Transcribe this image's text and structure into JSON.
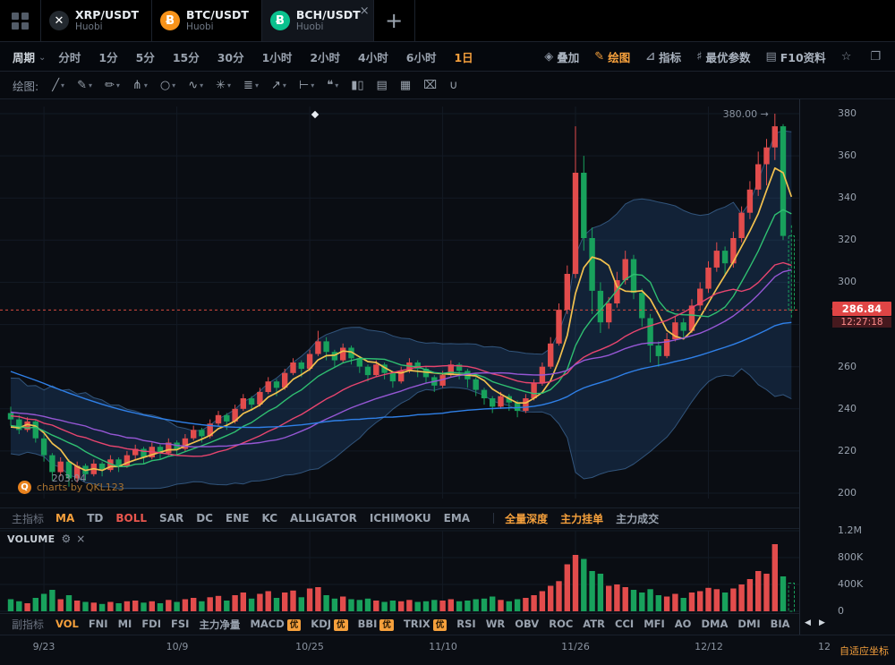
{
  "colors": {
    "up": "#e24c4c",
    "down": "#18a15c",
    "accent": "#f5a03c",
    "boll_fill": "rgba(42,96,160,0.26)",
    "boll_edge": "rgba(86,146,210,0.5)",
    "price_line": "#d84b40",
    "tag_bg": "#e04545",
    "grid": "#131a24",
    "ma5": "#f2c14e",
    "ma10": "#2fbf71",
    "ma20": "#e8456f",
    "ma30": "#9657d5",
    "ma60": "#2f80e8",
    "boll_label": "#e8564e"
  },
  "tabbar": {
    "add_label": "+",
    "tabs": [
      {
        "id": "xrp-usdt",
        "symbol": "XRP/USDT",
        "exchange": "Huobi",
        "icon": "xrp",
        "icon_glyph": "✕",
        "icon_bg": "#23292f",
        "active": false
      },
      {
        "id": "btc-usdt",
        "symbol": "BTC/USDT",
        "exchange": "Huobi",
        "icon": "btc",
        "icon_glyph": "Ƀ",
        "icon_bg": "#f7931a",
        "active": false
      },
      {
        "id": "bch-usdt",
        "symbol": "BCH/USDT",
        "exchange": "Huobi",
        "icon": "bch",
        "icon_glyph": "Ƀ",
        "icon_bg": "#0ac18e",
        "active": true,
        "close": "×"
      }
    ]
  },
  "period_bar": {
    "label": "周期",
    "caret": "⌄",
    "selected": "1d",
    "items": [
      {
        "id": "fenshi",
        "label": "分时"
      },
      {
        "id": "1m",
        "label": "1分"
      },
      {
        "id": "5m",
        "label": "5分"
      },
      {
        "id": "15m",
        "label": "15分"
      },
      {
        "id": "30m",
        "label": "30分"
      },
      {
        "id": "1h",
        "label": "1小时"
      },
      {
        "id": "2h",
        "label": "2小时"
      },
      {
        "id": "4h",
        "label": "4小时"
      },
      {
        "id": "6h",
        "label": "6小时"
      },
      {
        "id": "1d",
        "label": "1日"
      }
    ],
    "right_tools": [
      {
        "name": "overlay",
        "glyph": "◈",
        "label": "叠加",
        "active": false
      },
      {
        "name": "draw",
        "glyph": "✎",
        "label": "绘图",
        "active": true
      },
      {
        "name": "indicator",
        "glyph": "⊿",
        "label": "指标",
        "active": false
      },
      {
        "name": "best-params",
        "glyph": "♯",
        "label": "最优参数",
        "active": false
      },
      {
        "name": "f10-info",
        "glyph": "▤",
        "label": "F10资料",
        "active": false
      },
      {
        "name": "favorite",
        "glyph": "☆",
        "label": "",
        "active": false
      },
      {
        "name": "fullscreen",
        "glyph": "❐",
        "label": "",
        "active": false
      }
    ]
  },
  "draw_bar": {
    "label": "绘图:",
    "tools": [
      {
        "name": "trend-line",
        "glyph": "╱",
        "caret": true
      },
      {
        "name": "brush",
        "glyph": "✎",
        "caret": true
      },
      {
        "name": "pen",
        "glyph": "✏",
        "caret": true
      },
      {
        "name": "pitchfork",
        "glyph": "⋔",
        "caret": true
      },
      {
        "name": "ellipse",
        "glyph": "○",
        "caret": true
      },
      {
        "name": "wave",
        "glyph": "∿",
        "caret": true
      },
      {
        "name": "fibonacci",
        "glyph": "✳",
        "caret": true
      },
      {
        "name": "pattern",
        "glyph": "≣",
        "caret": true
      },
      {
        "name": "arrow",
        "glyph": "↗",
        "caret": true
      },
      {
        "name": "horizontal-line",
        "glyph": "⊢",
        "caret": true
      },
      {
        "name": "callout",
        "glyph": "❝",
        "caret": true
      },
      {
        "name": "volume-profile",
        "glyph": "▮▯",
        "caret": false
      },
      {
        "name": "export",
        "glyph": "▤",
        "caret": false
      },
      {
        "name": "histogram",
        "glyph": "▦",
        "caret": false
      },
      {
        "name": "trash",
        "glyph": "⌧",
        "caret": false
      },
      {
        "name": "magnet",
        "glyph": "∪",
        "caret": false
      }
    ]
  },
  "main_indicator_bar": {
    "label": "主指标",
    "items": [
      {
        "id": "ma",
        "label": "MA",
        "active": true
      },
      {
        "id": "td",
        "label": "TD"
      },
      {
        "id": "boll",
        "label": "BOLL",
        "active": true,
        "color": "#e8564e"
      },
      {
        "id": "sar",
        "label": "SAR"
      },
      {
        "id": "dc",
        "label": "DC"
      },
      {
        "id": "ene",
        "label": "ENE"
      },
      {
        "id": "kc",
        "label": "KC"
      },
      {
        "id": "alligator",
        "label": "ALLIGATOR"
      },
      {
        "id": "ichimoku",
        "label": "ICHIMOKU"
      },
      {
        "id": "ema",
        "label": "EMA"
      }
    ],
    "right_items": [
      {
        "id": "full-depth",
        "label": "全量深度",
        "active": true
      },
      {
        "id": "main-orders",
        "label": "主力挂单",
        "active": true
      },
      {
        "id": "main-trades",
        "label": "主力成交"
      }
    ]
  },
  "sub_indicator_bar": {
    "label": "副指标",
    "nav_left": "◀",
    "nav_right": "▶",
    "items": [
      {
        "id": "vol",
        "label": "VOL",
        "active": true
      },
      {
        "id": "fni",
        "label": "FNI"
      },
      {
        "id": "mi",
        "label": "MI"
      },
      {
        "id": "fdi",
        "label": "FDI"
      },
      {
        "id": "fsi",
        "label": "FSI"
      },
      {
        "id": "main-net-volume",
        "label": "主力净量"
      },
      {
        "id": "macd",
        "label": "MACD",
        "badge": "优"
      },
      {
        "id": "kdj",
        "label": "KDJ",
        "badge": "优"
      },
      {
        "id": "bbi",
        "label": "BBI",
        "badge": "优"
      },
      {
        "id": "trix",
        "label": "TRIX",
        "badge": "优"
      },
      {
        "id": "rsi",
        "label": "RSI"
      },
      {
        "id": "wr",
        "label": "WR"
      },
      {
        "id": "obv",
        "label": "OBV"
      },
      {
        "id": "roc",
        "label": "ROC"
      },
      {
        "id": "atr",
        "label": "ATR"
      },
      {
        "id": "cci",
        "label": "CCI"
      },
      {
        "id": "mfi",
        "label": "MFI"
      },
      {
        "id": "ao",
        "label": "AO"
      },
      {
        "id": "dma",
        "label": "DMA"
      },
      {
        "id": "dmi",
        "label": "DMI"
      },
      {
        "id": "bia",
        "label": "BIA"
      }
    ]
  },
  "volume_pane": {
    "title": "VOLUME",
    "gear": "⚙",
    "close": "×"
  },
  "bottom": {
    "adaptive_label": "自适应坐标"
  },
  "chart_data": {
    "type": "candlestick",
    "symbol": "BCH/USDT",
    "exchange": "Huobi",
    "interval": "1日",
    "title": "BCH/USDT Huobi 1日 K线",
    "y_ticks": [
      380,
      360,
      340,
      320,
      300,
      280,
      260,
      240,
      220,
      200
    ],
    "x_tick_labels": [
      "9/23",
      "10/9",
      "10/25",
      "11/10",
      "11/26",
      "12/12",
      "12"
    ],
    "x_tick_indices": [
      4,
      20,
      36,
      52,
      68,
      84,
      98
    ],
    "last_price": "286.84",
    "last_price_value": 286.84,
    "countdown": "12:27:18",
    "high_marker": "380.00",
    "high_marker_index": 92,
    "low_marker": "203.04",
    "low_marker_index": 7,
    "watermark": "charts by QKL123",
    "draw_marker": {
      "x": 352,
      "y": 17
    },
    "volume_ticks": [
      {
        "label": "1.2M",
        "value": 1200000
      },
      {
        "label": "800K",
        "value": 800000
      },
      {
        "label": "400K",
        "value": 400000
      },
      {
        "label": "0",
        "value": 0
      }
    ],
    "volume_max": 1200000,
    "ma_periods": [
      5,
      10,
      20,
      30,
      60
    ],
    "boll_period": 20,
    "boll_mult": 2,
    "pre_closes": [
      320,
      317,
      314,
      311,
      308,
      305,
      302,
      299,
      296,
      293,
      290,
      287,
      284,
      281,
      278,
      275,
      272,
      270,
      268,
      266,
      264,
      262,
      260,
      258,
      256,
      254,
      252,
      250,
      248,
      246,
      245,
      244,
      243,
      242,
      241,
      240,
      239,
      238,
      237,
      236,
      260,
      238,
      256,
      232,
      252,
      228,
      250,
      240,
      246,
      226,
      244,
      236,
      240,
      222,
      236,
      230,
      232,
      226,
      230,
      234
    ],
    "candles": [
      [
        238,
        241,
        232,
        235,
        180000
      ],
      [
        235,
        237,
        228,
        230,
        150000
      ],
      [
        230,
        236,
        229,
        234,
        120000
      ],
      [
        234,
        235,
        224,
        226,
        200000
      ],
      [
        226,
        228,
        215,
        218,
        260000
      ],
      [
        218,
        219,
        206,
        210,
        320000
      ],
      [
        210,
        217,
        208,
        215,
        180000
      ],
      [
        215,
        216,
        203.04,
        207,
        240000
      ],
      [
        207,
        215,
        205,
        213,
        160000
      ],
      [
        213,
        214,
        206,
        209,
        140000
      ],
      [
        209,
        216,
        208,
        214,
        130000
      ],
      [
        214,
        215,
        208,
        211,
        110000
      ],
      [
        211,
        218,
        210,
        216,
        140000
      ],
      [
        216,
        217,
        210,
        213,
        120000
      ],
      [
        213,
        220,
        212,
        218,
        150000
      ],
      [
        218,
        223,
        216,
        221,
        160000
      ],
      [
        221,
        222,
        214,
        217,
        130000
      ],
      [
        217,
        224,
        216,
        222,
        150000
      ],
      [
        222,
        223,
        216,
        219,
        120000
      ],
      [
        219,
        226,
        218,
        224,
        170000
      ],
      [
        224,
        225,
        218,
        221,
        140000
      ],
      [
        221,
        228,
        220,
        226,
        180000
      ],
      [
        226,
        232,
        225,
        230,
        200000
      ],
      [
        230,
        231,
        224,
        227,
        150000
      ],
      [
        227,
        235,
        226,
        233,
        210000
      ],
      [
        233,
        239,
        232,
        237,
        230000
      ],
      [
        237,
        238,
        230,
        234,
        160000
      ],
      [
        234,
        242,
        233,
        240,
        240000
      ],
      [
        240,
        247,
        239,
        245,
        280000
      ],
      [
        245,
        246,
        239,
        242,
        190000
      ],
      [
        242,
        250,
        241,
        248,
        260000
      ],
      [
        248,
        255,
        247,
        253,
        300000
      ],
      [
        253,
        254,
        246,
        250,
        200000
      ],
      [
        250,
        259,
        249,
        257,
        280000
      ],
      [
        257,
        264,
        256,
        262,
        310000
      ],
      [
        262,
        263,
        255,
        259,
        210000
      ],
      [
        259,
        268,
        258,
        266,
        340000
      ],
      [
        266,
        277,
        265,
        272,
        360000
      ],
      [
        272,
        274,
        263,
        267,
        240000
      ],
      [
        267,
        268,
        260,
        263,
        190000
      ],
      [
        263,
        271,
        262,
        269,
        220000
      ],
      [
        269,
        270,
        261,
        264,
        180000
      ],
      [
        264,
        265,
        257,
        260,
        170000
      ],
      [
        260,
        261,
        253,
        256,
        190000
      ],
      [
        256,
        263,
        255,
        261,
        160000
      ],
      [
        261,
        262,
        254,
        257,
        140000
      ],
      [
        257,
        258,
        250,
        253,
        160000
      ],
      [
        253,
        260,
        252,
        258,
        150000
      ],
      [
        258,
        264,
        257,
        262,
        170000
      ],
      [
        262,
        263,
        255,
        259,
        140000
      ],
      [
        259,
        260,
        252,
        255,
        150000
      ],
      [
        255,
        256,
        248,
        251,
        170000
      ],
      [
        251,
        258,
        250,
        256,
        160000
      ],
      [
        256,
        263,
        255,
        261,
        180000
      ],
      [
        261,
        262,
        254,
        258,
        150000
      ],
      [
        258,
        259,
        250,
        254,
        160000
      ],
      [
        254,
        255,
        246,
        249,
        180000
      ],
      [
        249,
        250,
        242,
        245,
        190000
      ],
      [
        245,
        246,
        238,
        241,
        220000
      ],
      [
        241,
        248,
        240,
        246,
        170000
      ],
      [
        246,
        247,
        239,
        243,
        150000
      ],
      [
        243,
        244,
        236,
        239,
        180000
      ],
      [
        239,
        247,
        238,
        245,
        200000
      ],
      [
        245,
        254,
        244,
        252,
        240000
      ],
      [
        252,
        262,
        251,
        260,
        300000
      ],
      [
        260,
        274,
        259,
        271,
        380000
      ],
      [
        271,
        290,
        270,
        287,
        450000
      ],
      [
        287,
        308,
        285,
        304,
        700000
      ],
      [
        304,
        374,
        302,
        352,
        840000
      ],
      [
        352,
        360,
        315,
        321,
        780000
      ],
      [
        321,
        326,
        285,
        296,
        600000
      ],
      [
        296,
        300,
        276,
        281,
        560000
      ],
      [
        281,
        293,
        278,
        290,
        380000
      ],
      [
        290,
        305,
        288,
        301,
        400000
      ],
      [
        301,
        315,
        299,
        311,
        360000
      ],
      [
        311,
        313,
        292,
        295,
        320000
      ],
      [
        295,
        297,
        279,
        283,
        280000
      ],
      [
        283,
        285,
        262,
        270,
        330000
      ],
      [
        270,
        272,
        260,
        265,
        240000
      ],
      [
        265,
        276,
        264,
        273,
        220000
      ],
      [
        273,
        284,
        272,
        281,
        260000
      ],
      [
        281,
        283,
        273,
        277,
        200000
      ],
      [
        277,
        292,
        276,
        289,
        280000
      ],
      [
        289,
        300,
        287,
        297,
        300000
      ],
      [
        297,
        310,
        295,
        307,
        350000
      ],
      [
        307,
        319,
        305,
        315,
        330000
      ],
      [
        315,
        317,
        303,
        309,
        280000
      ],
      [
        309,
        324,
        307,
        321,
        340000
      ],
      [
        321,
        336,
        319,
        333,
        400000
      ],
      [
        333,
        348,
        330,
        344,
        480000
      ],
      [
        344,
        362,
        341,
        356,
        600000
      ],
      [
        356,
        368,
        346,
        364,
        560000
      ],
      [
        364,
        380,
        358,
        374,
        1000000
      ],
      [
        374,
        375,
        320,
        322,
        520000
      ],
      [
        322,
        327,
        283,
        286.84,
        420000
      ]
    ]
  }
}
